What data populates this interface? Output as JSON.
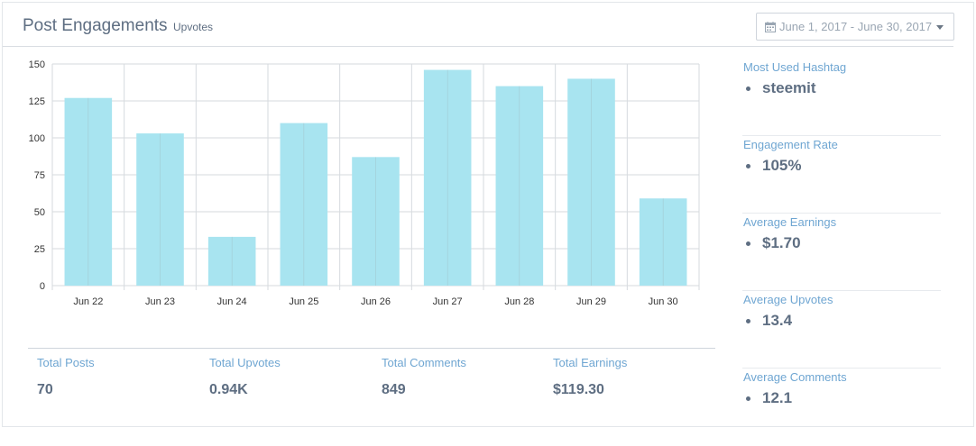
{
  "header": {
    "title": "Post Engagements",
    "subtitle": "Upvotes",
    "date_range": "June 1, 2017 - June 30, 2017"
  },
  "chart_data": {
    "type": "bar",
    "categories": [
      "Jun 22",
      "Jun 23",
      "Jun 24",
      "Jun 25",
      "Jun 26",
      "Jun 27",
      "Jun 28",
      "Jun 29",
      "Jun 30"
    ],
    "values": [
      127,
      103,
      33,
      110,
      87,
      146,
      135,
      140,
      59
    ],
    "ylim": [
      0,
      150
    ],
    "yticks": [
      "0",
      "25",
      "50",
      "75",
      "100",
      "125",
      "150"
    ],
    "grid": true,
    "bar_color": "#a8e4f0"
  },
  "stats": [
    {
      "label": "Total Posts",
      "value": "70"
    },
    {
      "label": "Total Upvotes",
      "value": "0.94K"
    },
    {
      "label": "Total Comments",
      "value": "849"
    },
    {
      "label": "Total Earnings",
      "value": "$119.30"
    }
  ],
  "side": [
    {
      "label": "Most Used Hashtag",
      "value": "steemit"
    },
    {
      "label": "Engagement Rate",
      "value": "105%"
    },
    {
      "label": "Average Earnings",
      "value": "$1.70"
    },
    {
      "label": "Average Upvotes",
      "value": "13.4"
    },
    {
      "label": "Average Comments",
      "value": "12.1"
    }
  ],
  "colors": {
    "accent_label": "#6fa6d2",
    "value_text": "#5e6e82",
    "bar": "#a8e4f0"
  }
}
